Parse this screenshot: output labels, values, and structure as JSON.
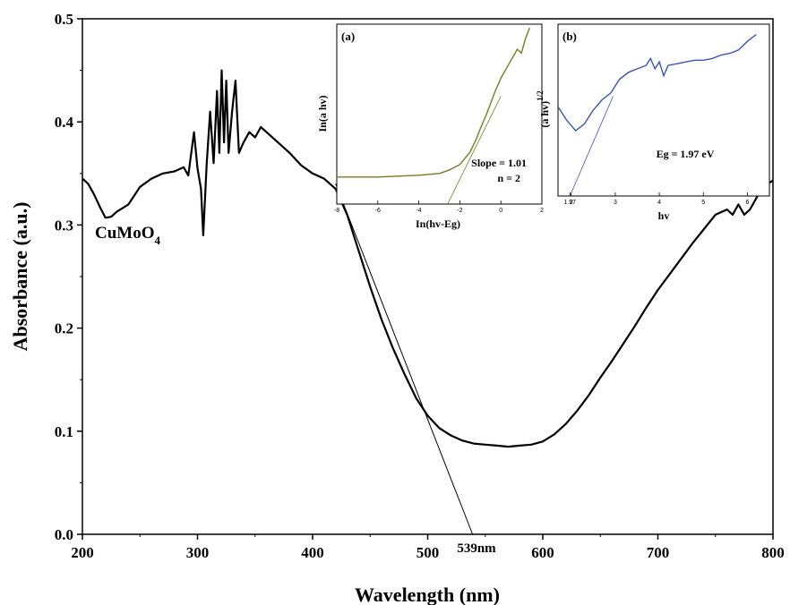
{
  "chart_data": [
    {
      "type": "line",
      "xlabel": "Wavelength (nm)",
      "ylabel": "Absorbance (a.u.)",
      "xlim": [
        200,
        800
      ],
      "ylim": [
        0.0,
        0.5
      ],
      "x_ticks": [
        "200",
        "300",
        "400",
        "500",
        "600",
        "700",
        "800"
      ],
      "y_ticks": [
        "0.0",
        "0.1",
        "0.2",
        "0.3",
        "0.4",
        "0.5"
      ],
      "sample_label": {
        "main": "CuMoO",
        "sub": "4"
      },
      "tangent_label": "539nm",
      "tangent_line": {
        "x": [
          420,
          539
        ],
        "y": [
          0.34,
          0.0
        ]
      },
      "line_color": "#000000",
      "series": [
        {
          "x": [
            200,
            205,
            210,
            215,
            220,
            225,
            230,
            240,
            250,
            260,
            270,
            280,
            288,
            292,
            297,
            300,
            303,
            305,
            308,
            311,
            314,
            317,
            319,
            321,
            323,
            325,
            327,
            330,
            333,
            336,
            340,
            345,
            350,
            355,
            360,
            370,
            380,
            390,
            400,
            410,
            420,
            430,
            440,
            450,
            460,
            470,
            480,
            490,
            500,
            510,
            520,
            530,
            540,
            550,
            560,
            570,
            580,
            590,
            600,
            610,
            620,
            630,
            640,
            650,
            660,
            670,
            680,
            690,
            700,
            710,
            720,
            730,
            740,
            750,
            760,
            765,
            770,
            775,
            780,
            785,
            790,
            795,
            800
          ],
          "y": [
            0.345,
            0.34,
            0.33,
            0.318,
            0.307,
            0.308,
            0.313,
            0.32,
            0.337,
            0.345,
            0.35,
            0.352,
            0.356,
            0.348,
            0.39,
            0.355,
            0.335,
            0.29,
            0.36,
            0.41,
            0.36,
            0.43,
            0.37,
            0.45,
            0.38,
            0.44,
            0.37,
            0.41,
            0.44,
            0.37,
            0.38,
            0.39,
            0.385,
            0.395,
            0.39,
            0.38,
            0.37,
            0.358,
            0.35,
            0.345,
            0.335,
            0.31,
            0.275,
            0.24,
            0.208,
            0.18,
            0.155,
            0.132,
            0.115,
            0.103,
            0.096,
            0.091,
            0.088,
            0.087,
            0.086,
            0.085,
            0.086,
            0.087,
            0.09,
            0.097,
            0.107,
            0.12,
            0.135,
            0.152,
            0.168,
            0.185,
            0.202,
            0.22,
            0.237,
            0.252,
            0.267,
            0.282,
            0.296,
            0.31,
            0.315,
            0.31,
            0.32,
            0.31,
            0.315,
            0.325,
            0.335,
            0.34,
            0.343
          ]
        }
      ]
    },
    {
      "type": "line",
      "panel_tag": "(a)",
      "xlabel": "In(hv-Eg)",
      "ylabel": "In(a  hv)",
      "xlim": [
        -8,
        2
      ],
      "x_ticks": [
        "-8",
        "-6",
        "-4",
        "-2",
        "0",
        "2"
      ],
      "line_color": "#7a7a20",
      "annotation_slope": "Slope = 1.01",
      "annotation_n": "n = 2",
      "fit_line": {
        "x": [
          -2.6,
          0.0
        ],
        "y": [
          0.0,
          0.6
        ]
      },
      "series": [
        {
          "x": [
            -8,
            -6,
            -4,
            -3,
            -2.5,
            -2,
            -1.5,
            -1.2,
            -1.0,
            -0.7,
            -0.5,
            -0.3,
            0.0,
            0.3,
            0.6,
            0.8,
            1.0,
            1.2,
            1.4
          ],
          "y": [
            0.15,
            0.15,
            0.16,
            0.17,
            0.19,
            0.22,
            0.29,
            0.36,
            0.42,
            0.5,
            0.56,
            0.62,
            0.7,
            0.76,
            0.82,
            0.86,
            0.84,
            0.92,
            0.98
          ]
        }
      ]
    },
    {
      "type": "line",
      "panel_tag": "(b)",
      "xlabel": "hv",
      "ylabel": "(a  hv)",
      "ylabel_sup": "1/2",
      "xlim": [
        1.7,
        6.5
      ],
      "x_ticks": [
        "1.97",
        "2",
        "3",
        "4",
        "5",
        "6"
      ],
      "line_color": "#3a55b0",
      "annotation": "Eg = 1.97 eV",
      "fit_line": {
        "x": [
          1.97,
          2.95
        ],
        "y": [
          0.0,
          0.58
        ]
      },
      "series": [
        {
          "x": [
            1.7,
            1.9,
            2.1,
            2.3,
            2.5,
            2.7,
            2.9,
            3.1,
            3.3,
            3.5,
            3.7,
            3.8,
            3.9,
            4.0,
            4.1,
            4.2,
            4.4,
            4.6,
            4.8,
            5.0,
            5.2,
            5.4,
            5.6,
            5.8,
            6.0,
            6.2
          ],
          "y": [
            0.52,
            0.44,
            0.38,
            0.42,
            0.5,
            0.56,
            0.6,
            0.68,
            0.72,
            0.74,
            0.76,
            0.8,
            0.74,
            0.78,
            0.7,
            0.76,
            0.77,
            0.78,
            0.79,
            0.79,
            0.8,
            0.82,
            0.83,
            0.85,
            0.9,
            0.94
          ]
        }
      ]
    }
  ]
}
